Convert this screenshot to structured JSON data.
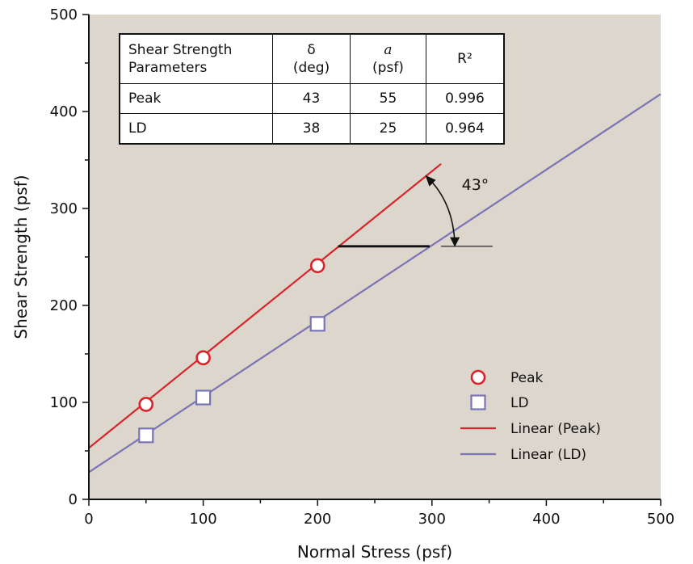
{
  "chart_data": {
    "type": "scatter",
    "xlabel": "Normal Stress (psf)",
    "ylabel": "Shear Strength (psf)",
    "xlim": [
      0,
      500
    ],
    "ylim": [
      0,
      500
    ],
    "x_ticks": [
      "0",
      "100",
      "200",
      "300",
      "400",
      "500"
    ],
    "y_ticks": [
      "0",
      "100",
      "200",
      "300",
      "400",
      "500"
    ],
    "grid": false,
    "legend_position": "bottom-right",
    "colors": {
      "plot_background": "#dcd6cc",
      "peak": "#d8242b",
      "ld": "#7a74b5",
      "axis": "#111111"
    },
    "series": [
      {
        "name": "Peak",
        "marker": "circle",
        "x": [
          50,
          100,
          200
        ],
        "y": [
          98,
          146,
          241
        ]
      },
      {
        "name": "LD",
        "marker": "square",
        "x": [
          50,
          100,
          200
        ],
        "y": [
          66,
          105,
          181
        ]
      }
    ],
    "trendlines": [
      {
        "name": "Linear (Peak)",
        "x": [
          0,
          308
        ],
        "y": [
          53,
          346
        ]
      },
      {
        "name": "Linear (LD)",
        "x": [
          0,
          500
        ],
        "y": [
          28,
          418
        ]
      }
    ],
    "annotations": {
      "angle_label": "43°",
      "reference_line_y": 261
    },
    "table": {
      "headers": [
        "Shear Strength Parameters",
        "δ (deg)",
        "a (psf)",
        "R²"
      ],
      "header_lines": [
        [
          "Shear Strength",
          "Parameters"
        ],
        [
          "δ",
          "(deg)"
        ],
        [
          "a",
          "(psf)"
        ],
        [
          "R²"
        ]
      ],
      "rows": [
        [
          "Peak",
          "43",
          "55",
          "0.996"
        ],
        [
          "LD",
          "38",
          "25",
          "0.964"
        ]
      ]
    }
  }
}
